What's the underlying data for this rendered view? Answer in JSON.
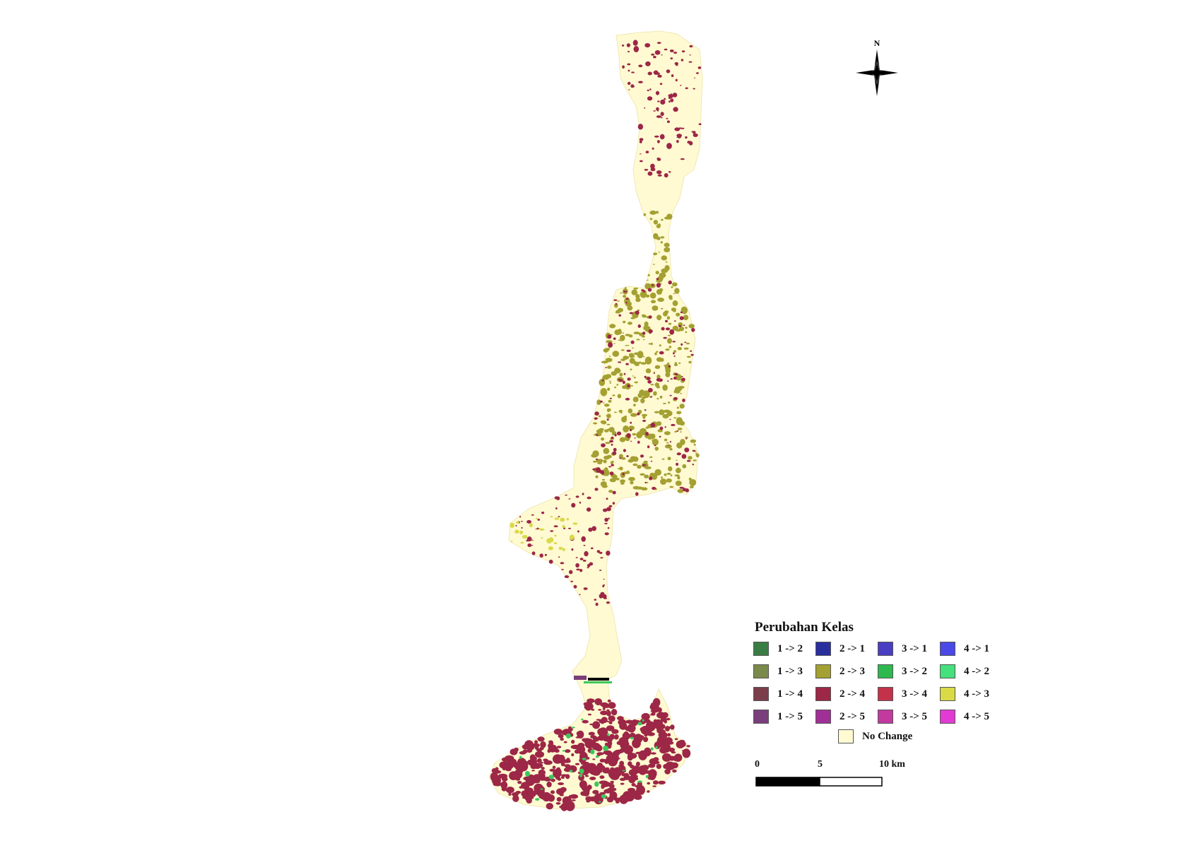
{
  "map": {
    "north_label": "N",
    "colors": {
      "background": "#ffffff",
      "no_change_fill": "#fffad2",
      "change_2_4": "#9c2747",
      "change_2_3": "#a4a032",
      "change_4_3": "#d9d94a",
      "change_3_2": "#3cc85a",
      "change_1_5": "#7b3e78"
    }
  },
  "legend": {
    "title": "Perubahan Kelas",
    "items": [
      {
        "label": "1 -> 2",
        "color": "#3a7d44"
      },
      {
        "label": "2 -> 1",
        "color": "#2a2f9e"
      },
      {
        "label": "3 -> 1",
        "color": "#4a3ec2"
      },
      {
        "label": "4 -> 1",
        "color": "#4a48e6"
      },
      {
        "label": "1 -> 3",
        "color": "#7a8a4a"
      },
      {
        "label": "2 -> 3",
        "color": "#a4a032"
      },
      {
        "label": "3 -> 2",
        "color": "#2fb84e"
      },
      {
        "label": "4 -> 2",
        "color": "#44e07c"
      },
      {
        "label": "1 -> 4",
        "color": "#7c3d4a"
      },
      {
        "label": "2 -> 4",
        "color": "#9c2747"
      },
      {
        "label": "3 -> 4",
        "color": "#c4324a"
      },
      {
        "label": "4 -> 3",
        "color": "#dada46"
      },
      {
        "label": "1 -> 5",
        "color": "#7b3e7c"
      },
      {
        "label": "2 -> 5",
        "color": "#a03096"
      },
      {
        "label": "3 -> 5",
        "color": "#c23aa0"
      },
      {
        "label": "4 -> 5",
        "color": "#e23ad2"
      }
    ],
    "no_change": {
      "label": "No Change",
      "color": "#fffad2"
    }
  },
  "scale": {
    "labels": [
      "0",
      "5",
      "10 km"
    ]
  }
}
